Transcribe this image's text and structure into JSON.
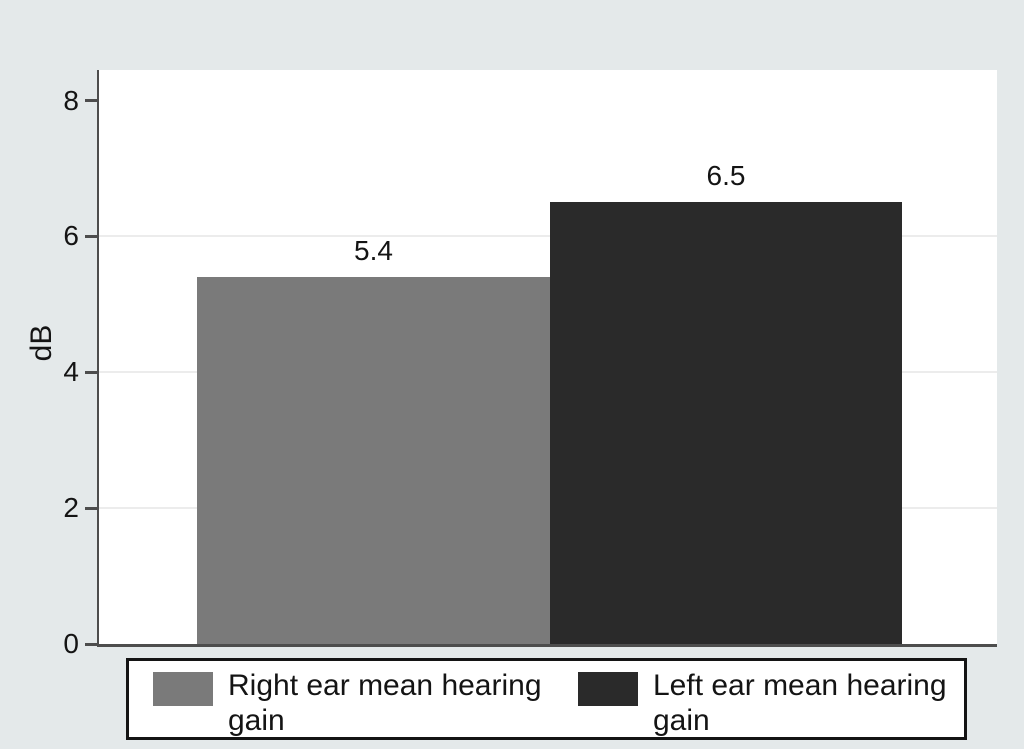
{
  "chart_data": {
    "type": "bar",
    "categories": [
      "Right ear mean hearing gain",
      "Left ear mean hearing gain"
    ],
    "values": [
      5.4,
      6.5
    ],
    "bar_labels": [
      "5.4",
      "6.5"
    ],
    "title": "",
    "xlabel": "",
    "ylabel": "dB",
    "yticks": [
      0,
      2,
      4,
      6,
      8
    ],
    "ylim": [
      0,
      8.45
    ],
    "gridlines_at": [
      2,
      4,
      6
    ],
    "grid": "horizontal-major-only",
    "legend_position": "bottom",
    "series_colors": [
      "#7a7a7a",
      "#2a2a2a"
    ]
  },
  "legend": {
    "items": [
      {
        "label": "Right ear mean hearing gain",
        "color": "#7a7a7a"
      },
      {
        "label": "Left ear mean hearing gain",
        "color": "#2a2a2a"
      }
    ]
  },
  "colors": {
    "figure_background": "#e4e9ea",
    "plot_background": "#ffffff",
    "axis_line": "#4d4d4d",
    "gridline": "#ececec",
    "text": "#141414",
    "legend_border": "#141414",
    "right_ear_bar": "#7a7a7a",
    "left_ear_bar": "#2a2a2a"
  }
}
